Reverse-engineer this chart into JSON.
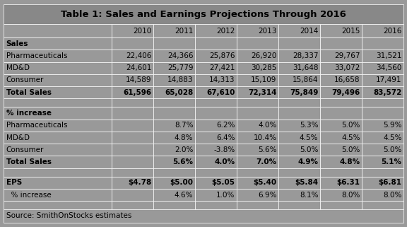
{
  "title": "Table 1: Sales and Earnings Projections Through 2016",
  "col_headers": [
    "",
    "2010",
    "2011",
    "2012",
    "2013",
    "2014",
    "2015",
    "2016"
  ],
  "rows": [
    {
      "label": "Sales",
      "values": [
        "",
        "",
        "",
        "",
        "",
        "",
        ""
      ],
      "type": "section_header"
    },
    {
      "label": "Pharmaceuticals",
      "values": [
        "22,406",
        "24,366",
        "25,876",
        "26,920",
        "28,337",
        "29,767",
        "31,521"
      ],
      "type": "data"
    },
    {
      "label": "MD&D",
      "values": [
        "24,601",
        "25,779",
        "27,421",
        "30,285",
        "31,648",
        "33,072",
        "34,560"
      ],
      "type": "data"
    },
    {
      "label": "Consumer",
      "values": [
        "14,589",
        "14,883",
        "14,313",
        "15,109",
        "15,864",
        "16,658",
        "17,491"
      ],
      "type": "data"
    },
    {
      "label": "Total Sales",
      "values": [
        "61,596",
        "65,028",
        "67,610",
        "72,314",
        "75,849",
        "79,496",
        "83,572"
      ],
      "type": "bold"
    },
    {
      "label": "",
      "values": [
        "",
        "",
        "",
        "",
        "",
        "",
        ""
      ],
      "type": "spacer"
    },
    {
      "label": "% increase",
      "values": [
        "",
        "",
        "",
        "",
        "",
        "",
        ""
      ],
      "type": "section_header"
    },
    {
      "label": "Pharmaceuticals",
      "values": [
        "",
        "8.7%",
        "6.2%",
        "4.0%",
        "5.3%",
        "5.0%",
        "5.9%"
      ],
      "type": "data"
    },
    {
      "label": "MD&D",
      "values": [
        "",
        "4.8%",
        "6.4%",
        "10.4%",
        "4.5%",
        "4.5%",
        "4.5%"
      ],
      "type": "data"
    },
    {
      "label": "Consumer",
      "values": [
        "",
        "2.0%",
        "-3.8%",
        "5.6%",
        "5.0%",
        "5.0%",
        "5.0%"
      ],
      "type": "data"
    },
    {
      "label": "Total Sales",
      "values": [
        "",
        "5.6%",
        "4.0%",
        "7.0%",
        "4.9%",
        "4.8%",
        "5.1%"
      ],
      "type": "bold"
    },
    {
      "label": "",
      "values": [
        "",
        "",
        "",
        "",
        "",
        "",
        ""
      ],
      "type": "spacer"
    },
    {
      "label": "EPS",
      "values": [
        "$4.78",
        "$5.00",
        "$5.05",
        "$5.40",
        "$5.84",
        "$6.31",
        "$6.81"
      ],
      "type": "bold"
    },
    {
      "label": "  % increase",
      "values": [
        "",
        "4.6%",
        "1.0%",
        "6.9%",
        "8.1%",
        "8.0%",
        "8.0%"
      ],
      "type": "data"
    },
    {
      "label": "",
      "values": [
        "",
        "",
        "",
        "",
        "",
        "",
        ""
      ],
      "type": "spacer"
    },
    {
      "label": "Source: SmithOnStocks estimates",
      "values": [
        "",
        "",
        "",
        "",
        "",
        "",
        ""
      ],
      "type": "source"
    }
  ],
  "bg_color": "#999999",
  "title_bg": "#888888",
  "cell_bg": "#999999",
  "border_color": "#ffffff",
  "text_color": "#000000",
  "font_size": 7.5,
  "title_font_size": 9.5,
  "fig_width": 5.76,
  "fig_height": 3.21,
  "dpi": 100
}
